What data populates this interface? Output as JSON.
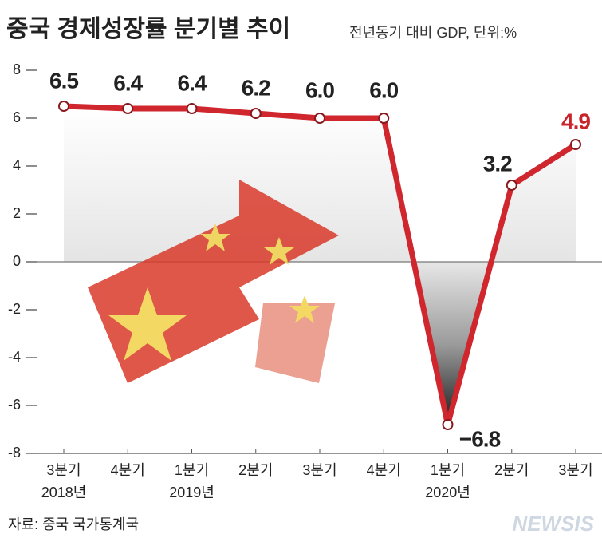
{
  "chart_data": {
    "type": "line",
    "title": "중국 경제성장률 분기별 추이",
    "subtitle": "전년동기 대비 GDP, 단위:%",
    "categories": [
      "3분기",
      "4분기",
      "1분기",
      "2분기",
      "3분기",
      "4분기",
      "1분기",
      "2분기",
      "3분기"
    ],
    "year_labels": [
      "2018년",
      null,
      "2019년",
      null,
      null,
      null,
      "2020년",
      null,
      null
    ],
    "series": [
      {
        "color": "#d0262d",
        "values": [
          6.5,
          6.4,
          6.4,
          6.2,
          6.0,
          6.0,
          -6.8,
          3.2,
          4.9
        ],
        "value_labels": [
          "6.5",
          "6.4",
          "6.4",
          "6.2",
          "6.0",
          "6.0",
          "−6.8",
          "3.2",
          "4.9"
        ]
      }
    ],
    "highlight_label_color": "#c8242b",
    "ylim": [
      -8,
      8
    ],
    "yticks": [
      -8,
      -6,
      -4,
      -2,
      0,
      2,
      4,
      6,
      8
    ],
    "source": "자료: 중국 국가통계국",
    "watermark": "NEWSIS"
  }
}
